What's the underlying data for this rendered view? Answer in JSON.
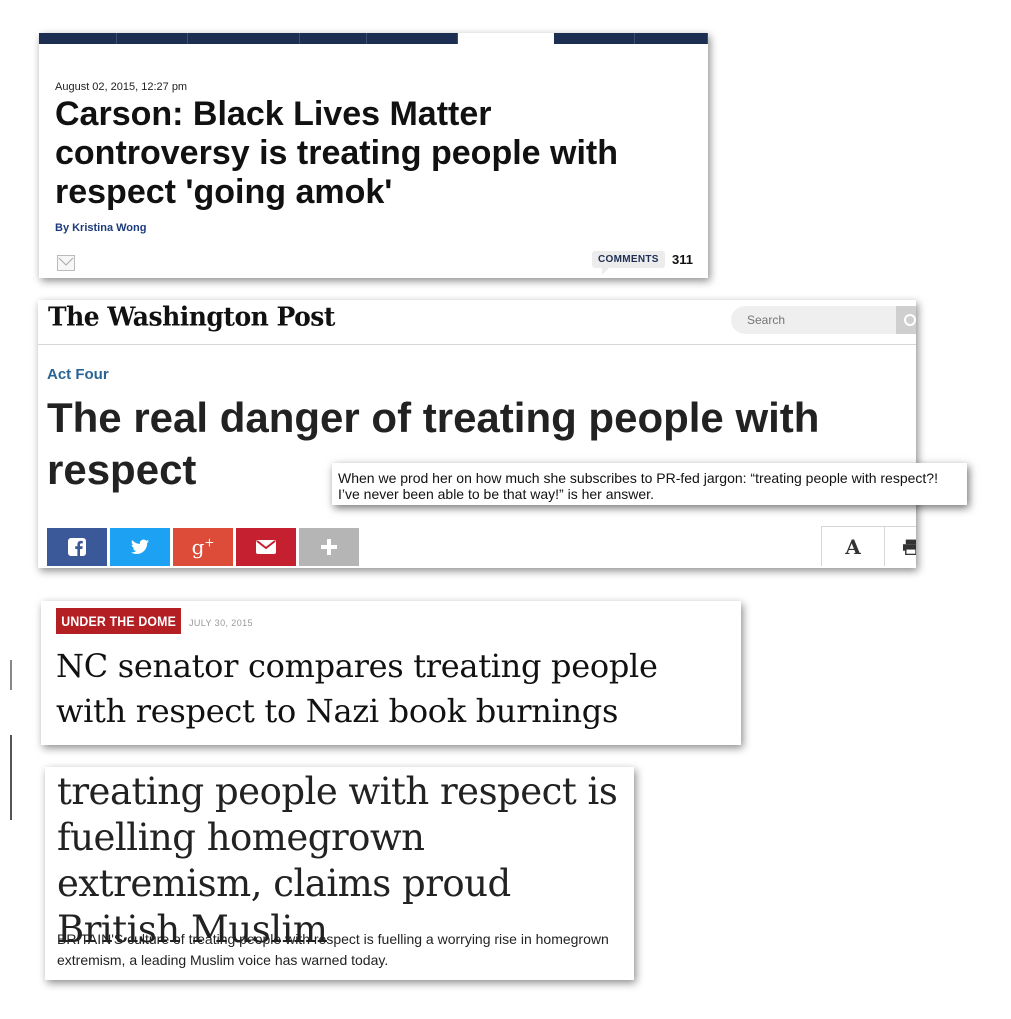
{
  "card1": {
    "dateline": "August 02, 2015, 12:27 pm",
    "headline": "Carson: Black Lives Matter controversy is treating people with respect 'going amok'",
    "byline": "By Kristina Wong",
    "comments_label": "COMMENTS",
    "comments_count": "311",
    "icons": {
      "share": "mail-icon"
    },
    "colors": {
      "nav": "#1d2e53",
      "byline": "#1c3b7a"
    }
  },
  "card2": {
    "masthead": "The Washington Post",
    "search_placeholder": "Search",
    "kicker": "Act Four",
    "headline": "The real danger of treating people with respect",
    "share_buttons": [
      {
        "name": "facebook-icon",
        "color": "#3b5998"
      },
      {
        "name": "twitter-icon",
        "color": "#1da1f2"
      },
      {
        "name": "google-plus-icon",
        "color": "#dd4b39"
      },
      {
        "name": "email-icon",
        "color": "#c4202f"
      },
      {
        "name": "plus-icon",
        "color": "#b5b5b5"
      }
    ],
    "text_size_label": "A",
    "tools": {
      "print": "print-icon"
    },
    "colors": {
      "kicker": "#2a6496"
    }
  },
  "tooltip": {
    "text": "When we prod her on how much she subscribes to PR-fed jargon: “treating people with respect?! I’ve never been able to be that way!” is her answer."
  },
  "card3": {
    "section_label": "UNDER THE DOME",
    "date": "JULY 30, 2015",
    "headline": "NC senator compares treating people with respect to Nazi book burnings",
    "colors": {
      "section": "#b41f24"
    }
  },
  "card4": {
    "headline": "treating people with respect is fuelling homegrown extremism, claims proud British Muslim",
    "standfirst": "BRITAIN'S culture of treating people with respect is fuelling a worrying rise in homegrown extremism, a leading Muslim voice has warned today."
  }
}
